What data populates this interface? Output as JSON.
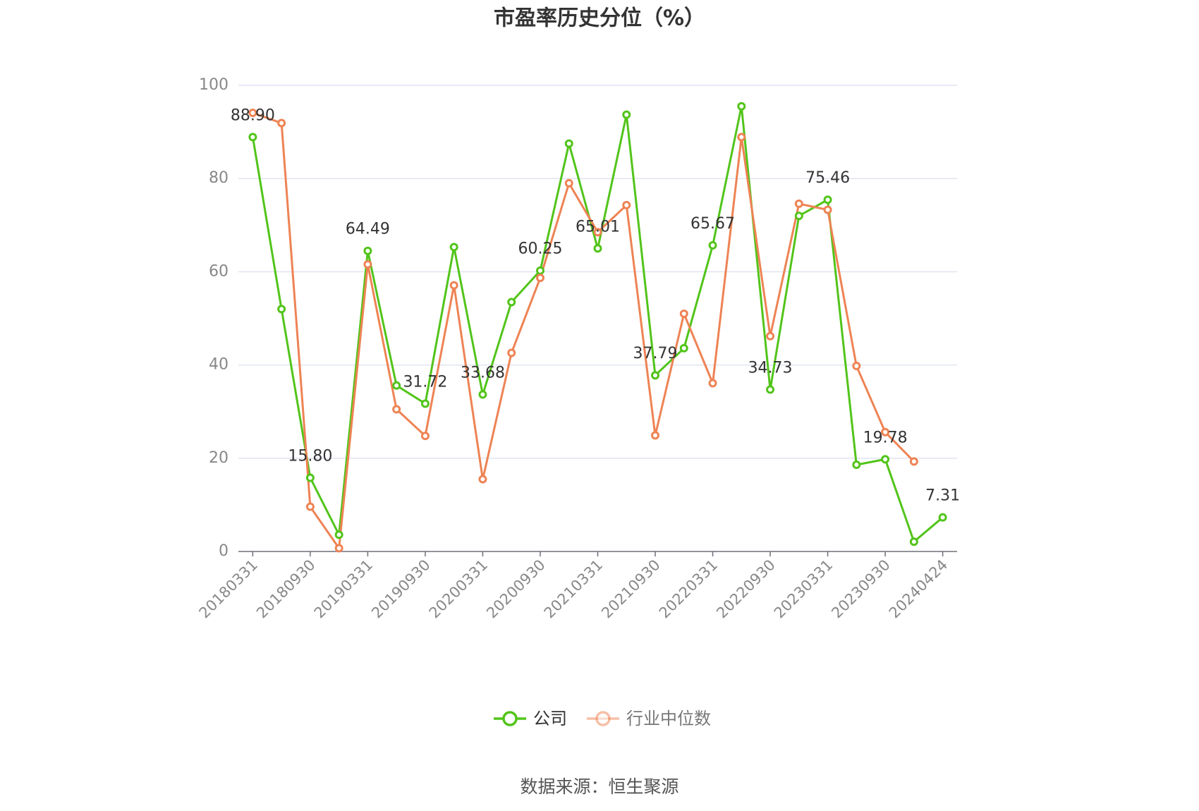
{
  "chart_data": {
    "type": "line",
    "title": "市盈率历史分位（%）",
    "source": "数据来源：恒生聚源",
    "categories": [
      "20180331",
      null,
      "20180930",
      null,
      "20190331",
      null,
      "20190930",
      null,
      "20200331",
      null,
      "20200930",
      null,
      "20210331",
      null,
      "20210930",
      null,
      "20220331",
      null,
      "20220930",
      null,
      "20230331",
      null,
      "20230930",
      null,
      "20240424"
    ],
    "series": [
      {
        "name": "公司",
        "color": "#52c41a",
        "values": [
          88.9,
          52.0,
          15.8,
          3.6,
          64.49,
          35.6,
          31.72,
          65.3,
          33.68,
          53.5,
          60.25,
          87.5,
          65.01,
          93.7,
          37.79,
          43.6,
          65.67,
          95.5,
          34.73,
          72.0,
          75.46,
          18.6,
          19.78,
          2.1,
          7.31
        ],
        "value_labels": [
          "88.90",
          null,
          "15.80",
          null,
          "64.49",
          null,
          "31.72",
          null,
          "33.68",
          null,
          "60.25",
          null,
          "65.01",
          null,
          "37.79",
          null,
          "65.67",
          null,
          "34.73",
          null,
          "75.46",
          null,
          "19.78",
          null,
          "7.31"
        ]
      },
      {
        "name": "行业中位数",
        "color": "#ee8354",
        "values": [
          94.1,
          91.9,
          9.6,
          0.7,
          61.6,
          30.5,
          24.8,
          57.1,
          15.5,
          42.6,
          58.7,
          79.0,
          68.5,
          74.3,
          24.9,
          51.0,
          36.1,
          88.9,
          46.2,
          74.6,
          73.3,
          39.8,
          25.6,
          19.3,
          null
        ]
      }
    ],
    "ylim": [
      0,
      100
    ],
    "yticks": [
      0,
      20,
      40,
      60,
      80,
      100
    ],
    "grid": true,
    "legend": "bottom"
  }
}
